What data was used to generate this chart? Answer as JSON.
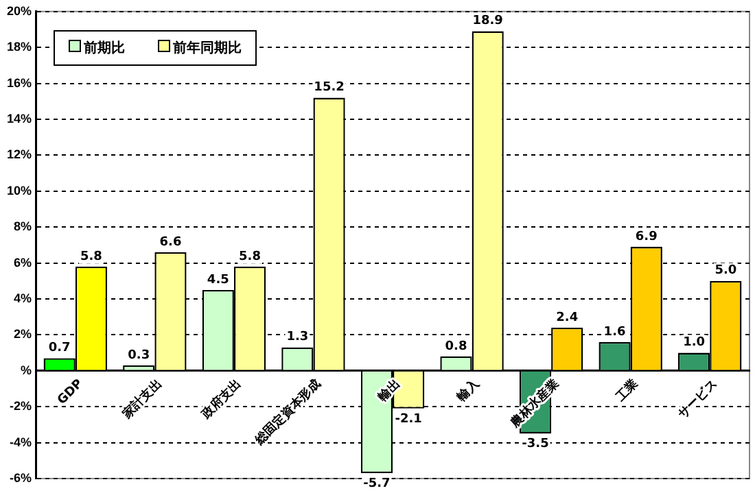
{
  "chart_data": {
    "type": "bar",
    "categories": [
      "GDP",
      "家計支出",
      "政府支出",
      "総固定資本形成",
      "輸出",
      "輸入",
      "農林水産業",
      "工業",
      "サービス"
    ],
    "series": [
      {
        "name": "前期比",
        "color": "#ccffcc",
        "colors": [
          "#00ff00",
          "#ccffcc",
          "#ccffcc",
          "#ccffcc",
          "#ccffcc",
          "#ccffcc",
          "#339966",
          "#339966",
          "#339966"
        ],
        "values": [
          0.7,
          0.3,
          4.5,
          1.3,
          -5.7,
          0.8,
          -3.5,
          1.6,
          1.0
        ],
        "value_labels": [
          "0.7",
          "0.3",
          "4.5",
          "1.3",
          "-5.7",
          "0.8",
          "-3.5",
          "1.6",
          "1.0"
        ]
      },
      {
        "name": "前年同期比",
        "color": "#ffff99",
        "colors": [
          "#ffff00",
          "#ffff99",
          "#ffff99",
          "#ffff99",
          "#ffff99",
          "#ffff99",
          "#ffcc00",
          "#ffcc00",
          "#ffcc00"
        ],
        "values": [
          5.8,
          6.6,
          5.8,
          15.2,
          -2.1,
          18.9,
          2.4,
          6.9,
          5.0
        ],
        "value_labels": [
          "5.8",
          "6.6",
          "5.8",
          "15.2",
          "-2.1",
          "18.9",
          "2.4",
          "6.9",
          "5.0"
        ]
      }
    ],
    "ylim": [
      -6,
      20
    ],
    "yticks": [
      {
        "value": -6,
        "label": "-6%"
      },
      {
        "value": -4,
        "label": "-4%"
      },
      {
        "value": -2,
        "label": "-2%"
      },
      {
        "value": 0,
        "label": "%"
      },
      {
        "value": 2,
        "label": "2%"
      },
      {
        "value": 4,
        "label": "4%"
      },
      {
        "value": 6,
        "label": "6%"
      },
      {
        "value": 8,
        "label": "8%"
      },
      {
        "value": 10,
        "label": "10%"
      },
      {
        "value": 12,
        "label": "12%"
      },
      {
        "value": 14,
        "label": "14%"
      },
      {
        "value": 16,
        "label": "16%"
      },
      {
        "value": 18,
        "label": "18%"
      },
      {
        "value": 20,
        "label": "20%"
      }
    ],
    "grid": "y",
    "legend": "top left"
  }
}
